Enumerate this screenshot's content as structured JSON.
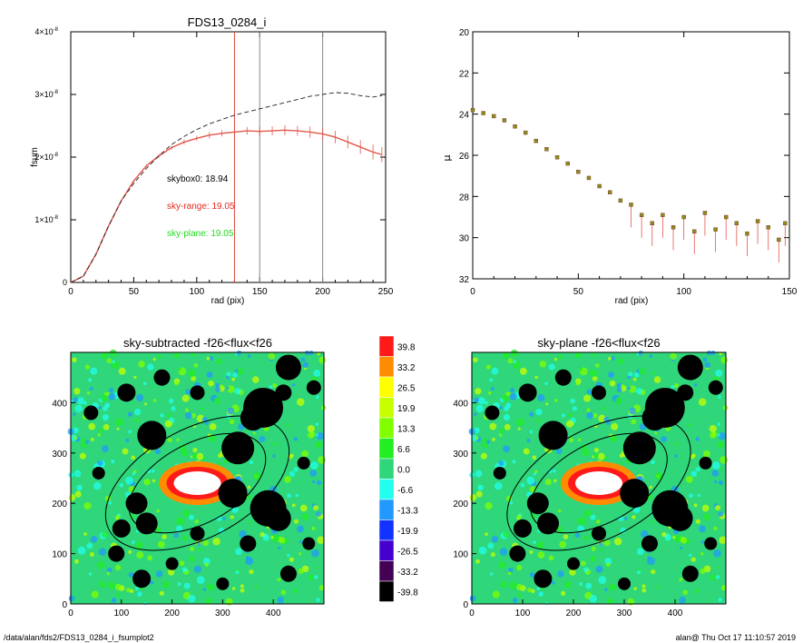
{
  "colors": {
    "axis": "#000000",
    "curve": "#e2584c",
    "dashed": "#222222",
    "vline_red": "#e0443a",
    "vline_gray": "#888888",
    "skybox_text": "#000000",
    "sky_range_text": "#e8281e",
    "sky_plane_text": "#22dd22",
    "olive_points": "#8b8b1e",
    "map_background": "#2fd67a",
    "contour": "#000000"
  },
  "chart_data": [
    {
      "type": "line",
      "title": "FDS13_0284_i",
      "xlabel": "rad (pix)",
      "ylabel": "fsum",
      "xlim": [
        0,
        250
      ],
      "ylim": [
        0,
        4e-08
      ],
      "x_ticks": [
        0,
        50,
        100,
        150,
        200,
        250
      ],
      "y_ticks": [
        {
          "value": 0,
          "label": "0"
        },
        {
          "value": 1e-08,
          "label": "1×10",
          "exp": "-8"
        },
        {
          "value": 2e-08,
          "label": "2×10",
          "exp": "-8"
        },
        {
          "value": 3e-08,
          "label": "3×10",
          "exp": "-8"
        },
        {
          "value": 4e-08,
          "label": "4×10",
          "exp": "-8"
        }
      ],
      "series": [
        {
          "style": "solid-with-errorbars",
          "x": [
            0,
            10,
            20,
            30,
            40,
            50,
            60,
            70,
            80,
            90,
            100,
            110,
            120,
            130,
            140,
            150,
            160,
            170,
            180,
            190,
            200,
            210,
            220,
            230,
            240,
            247
          ],
          "y": [
            0,
            1e-09,
            4.5e-09,
            9e-09,
            1.3e-08,
            1.62e-08,
            1.86e-08,
            2.02e-08,
            2.15e-08,
            2.24e-08,
            2.3e-08,
            2.35e-08,
            2.38e-08,
            2.4e-08,
            2.42e-08,
            2.41e-08,
            2.42e-08,
            2.43e-08,
            2.42e-08,
            2.4e-08,
            2.37e-08,
            2.32e-08,
            2.24e-08,
            2.16e-08,
            2.08e-08,
            2.04e-08
          ],
          "err": [
            0,
            5e-11,
            1e-10,
            1e-10,
            1.5e-10,
            2e-10,
            2e-10,
            3e-10,
            3e-10,
            4e-10,
            4e-10,
            5e-10,
            5e-10,
            6e-10,
            6e-10,
            7e-10,
            7e-10,
            8e-10,
            8e-10,
            9e-10,
            9e-10,
            1e-09,
            1e-09,
            1.1e-09,
            1.2e-09,
            1.2e-09
          ]
        },
        {
          "style": "dashed",
          "x": [
            0,
            10,
            20,
            30,
            40,
            50,
            60,
            70,
            80,
            90,
            100,
            110,
            120,
            130,
            140,
            150,
            160,
            170,
            180,
            190,
            200,
            210,
            220,
            230,
            240,
            247
          ],
          "y": [
            0,
            1e-09,
            4.5e-09,
            9e-09,
            1.3e-08,
            1.58e-08,
            1.82e-08,
            2.02e-08,
            2.2e-08,
            2.33e-08,
            2.44e-08,
            2.53e-08,
            2.6e-08,
            2.67e-08,
            2.72e-08,
            2.77e-08,
            2.82e-08,
            2.87e-08,
            2.92e-08,
            2.97e-08,
            3e-08,
            3.03e-08,
            3.02e-08,
            2.98e-08,
            2.96e-08,
            2.98e-08
          ]
        }
      ],
      "vlines": [
        {
          "x": 130,
          "color": "red"
        },
        {
          "x": 150,
          "color": "gray"
        },
        {
          "x": 200,
          "color": "gray"
        }
      ],
      "annotations": [
        {
          "text": "skybox0: 18.94",
          "color": "black"
        },
        {
          "text": "sky-range: 19.05",
          "color": "red"
        },
        {
          "text": "sky-plane: 19.05",
          "color": "green"
        }
      ]
    },
    {
      "type": "scatter",
      "xlabel": "rad (pix)",
      "ylabel": "μ",
      "xlim": [
        0,
        150
      ],
      "ylim": [
        32,
        20
      ],
      "y_inverted": true,
      "x_ticks": [
        0,
        50,
        100,
        150
      ],
      "y_ticks": [
        20,
        22,
        24,
        26,
        28,
        30,
        32
      ],
      "series": [
        {
          "marker": "square",
          "x": [
            0,
            5,
            10,
            15,
            20,
            25,
            30,
            35,
            40,
            45,
            50,
            55,
            60,
            65,
            70,
            75,
            80,
            85,
            90,
            95,
            100,
            105,
            110,
            115,
            120,
            125,
            130,
            135,
            140,
            145,
            148
          ],
          "y": [
            23.8,
            23.95,
            24.1,
            24.3,
            24.6,
            24.9,
            25.3,
            25.7,
            26.1,
            26.4,
            26.8,
            27.1,
            27.5,
            27.8,
            28.2,
            28.4,
            28.9,
            29.3,
            28.9,
            29.5,
            29.0,
            29.7,
            28.8,
            29.6,
            29.0,
            29.3,
            29.8,
            29.2,
            29.5,
            30.1,
            29.3
          ]
        }
      ]
    },
    {
      "type": "heatmap",
      "title": "sky-subtracted -f26<flux<f26",
      "xlim": [
        0,
        500
      ],
      "ylim": [
        0,
        500
      ],
      "x_ticks": [
        0,
        100,
        200,
        300,
        400
      ],
      "y_ticks": [
        0,
        100,
        200,
        300,
        400
      ]
    },
    {
      "type": "heatmap",
      "title": "sky-plane -f26<flux<f26",
      "xlim": [
        0,
        500
      ],
      "ylim": [
        0,
        500
      ],
      "x_ticks": [
        0,
        100,
        200,
        300,
        400
      ],
      "y_ticks": [
        0,
        100,
        200,
        300,
        400
      ]
    }
  ],
  "colorbar": {
    "labels": [
      "39.8",
      "33.2",
      "26.5",
      "19.9",
      "13.3",
      "6.6",
      "0.0",
      "-6.6",
      "-13.3",
      "-19.9",
      "-26.5",
      "-33.2",
      "-39.8"
    ],
    "colors": [
      "#ff1a1a",
      "#ff8c00",
      "#ffff00",
      "#c8ff00",
      "#80ff00",
      "#22ee22",
      "#2fd67a",
      "#22ffee",
      "#2299ff",
      "#1133ff",
      "#4400cc",
      "#440055",
      "#000000"
    ]
  },
  "footer": {
    "left": "/data/alan/fds2/FDS13_0284_i_fsumplot2",
    "right": "alan@  Thu Oct 17 11:10:57 2019"
  }
}
